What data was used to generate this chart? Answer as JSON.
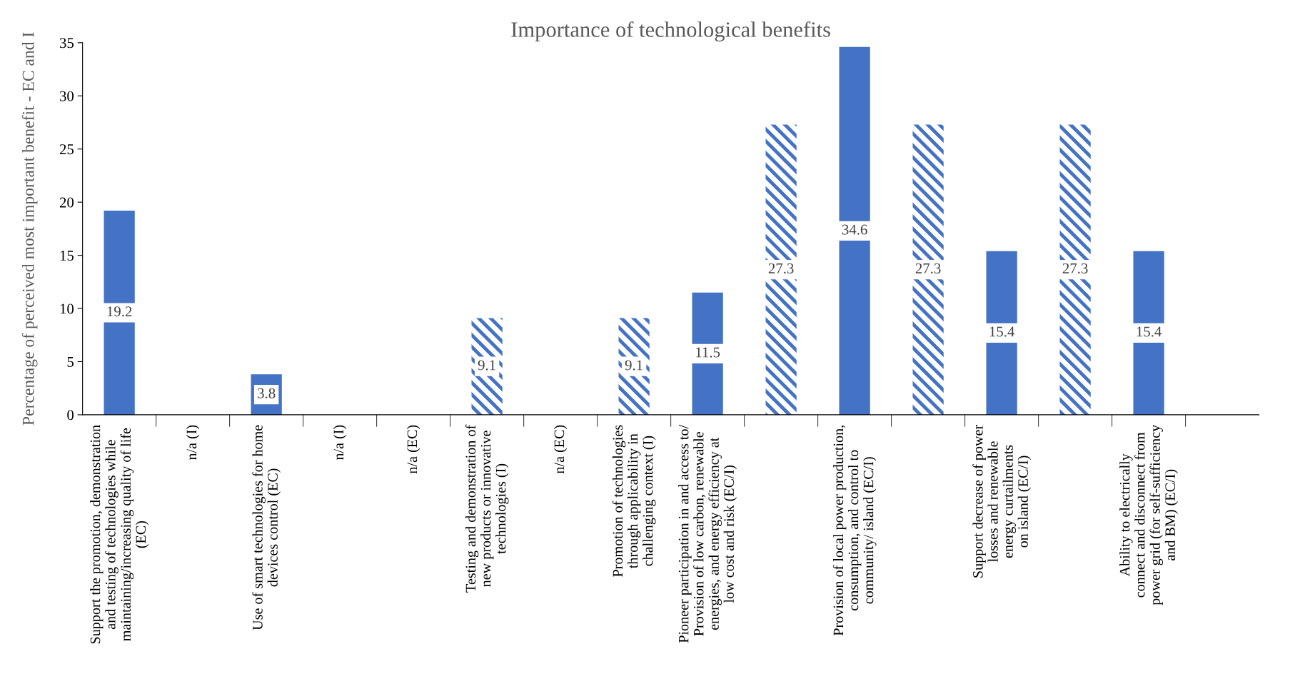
{
  "chart_data": {
    "type": "bar",
    "title": "Importance of technological benefits",
    "ylabel": "Percentage of perceived most important benefit - EC and I",
    "categories": [
      "Support the promotion, demonstration\nand testing of technologies while\nmaintaining/increasing quality of life\n(EC)",
      "n/a (I)",
      "Use of smart technologies for home\ndevices control (EC)",
      "n/a (I)",
      "n/a (EC)",
      "Testing and demonstration of\nnew products or innovative\ntechnologies (I)",
      "n/a (EC)",
      "Promotion of technologies\nthrough applicability in\nchallenging context (I)",
      "Pioneer participation in and access to/\nProvision of low carbon, renewable\nenergies, and energy efficiency at\nlow cost and risk (EC/I)",
      null,
      "Provision of local power production,\nconsumption, and control to\ncommunity/ island (EC/I)",
      null,
      "Support decrease of power\nlosses and renewable\nenergy curtailments\non island (EC/I)",
      null,
      "Ability to electrically\nconnect and disconnect from\npower grid (for self-sufficiency\nand BM) (EC/I)",
      null
    ],
    "series": [
      {
        "color": "#4472c4",
        "values": [
          19.2,
          0,
          3.8,
          0,
          0,
          null,
          0,
          null,
          11.5,
          null,
          34.6,
          null,
          15.4,
          null,
          15.4,
          null
        ],
        "value_labels": [
          "19.2",
          null,
          "3.8",
          null,
          null,
          null,
          null,
          null,
          "11.5",
          null,
          "34.6",
          null,
          "15.4",
          null,
          "15.4",
          null
        ]
      },
      {
        "color": "#4472c4",
        "values": [
          null,
          null,
          null,
          null,
          null,
          9.1,
          null,
          9.1,
          null,
          27.3,
          null,
          27.3,
          null,
          27.3,
          null,
          null
        ],
        "value_labels": [
          null,
          null,
          null,
          null,
          null,
          "9.1",
          null,
          "9.1",
          null,
          "27.3",
          null,
          "27.3",
          null,
          "27.3",
          null,
          null
        ]
      }
    ],
    "ylim": [
      0,
      35
    ],
    "yticks": [
      0,
      5,
      10,
      15,
      20,
      25,
      30,
      35
    ],
    "grid": false,
    "legend": false
  }
}
